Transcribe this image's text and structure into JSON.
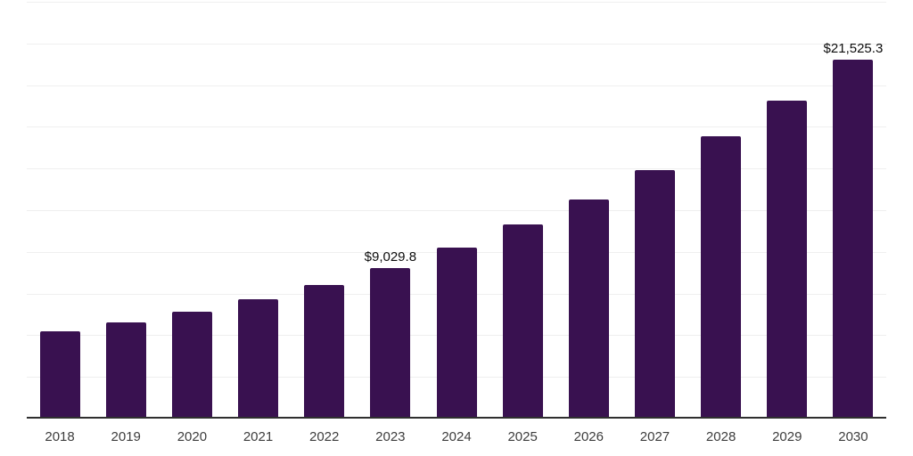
{
  "chart_data": {
    "type": "bar",
    "title": "",
    "xlabel": "",
    "ylabel": "",
    "categories": [
      "2018",
      "2019",
      "2020",
      "2021",
      "2022",
      "2023",
      "2024",
      "2025",
      "2026",
      "2027",
      "2028",
      "2029",
      "2030"
    ],
    "values": [
      5250,
      5790,
      6410,
      7160,
      8010,
      9029.8,
      10280,
      11640,
      13150,
      14890,
      16910,
      19060,
      21525.3
    ],
    "annotations": [
      {
        "index": 5,
        "text": "$9,029.8"
      },
      {
        "index": 12,
        "text": "$21,525.3"
      }
    ],
    "ylim": [
      0,
      25000
    ],
    "gridline_step": 2500,
    "grid": true,
    "y_tick_labels_visible": false,
    "legend_position": "none",
    "colors": {
      "bar": "#391150",
      "gridline": "#efefef",
      "axis_line": "#2f2f2f",
      "annotation_text": "#0d0d0d",
      "tick_label_text": "#3d3d3d",
      "background": "#ffffff"
    }
  }
}
